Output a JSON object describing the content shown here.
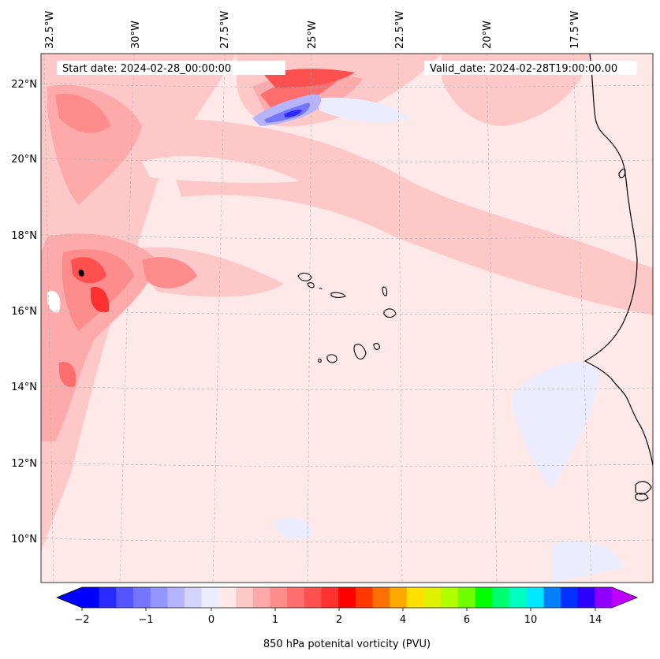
{
  "map": {
    "start_date": "Start date: 2024-02-28_00:00:00",
    "valid_date": "Valid_date: 2024-02-28T19:00:00.00",
    "lon_labels": [
      "32.5°W",
      "30°W",
      "27.5°W",
      "25°W",
      "22.5°W",
      "20°W",
      "17.5°W"
    ],
    "lat_labels": [
      "22°N",
      "20°N",
      "18°N",
      "16°N",
      "14°N",
      "12°N",
      "10°N"
    ],
    "background_color": "#ffe8e8",
    "coastline_color": "#000000"
  },
  "colorbar": {
    "label": "850 hPa potenital vorticity (PVU)",
    "tick_labels": [
      "−2",
      "−1",
      "0",
      "1",
      "2",
      "4",
      "6",
      "10",
      "14"
    ],
    "colors": [
      "#0000ff",
      "#2a2aff",
      "#5555ff",
      "#7575ff",
      "#9595ff",
      "#b4b4ff",
      "#d4d4ff",
      "#ececff",
      "#ffe8e8",
      "#ffc8c8",
      "#ffaaaa",
      "#ff8c8c",
      "#ff6e6e",
      "#ff5050",
      "#ff3030",
      "#ff0000",
      "#ff3800",
      "#ff7000",
      "#ffa800",
      "#ffe000",
      "#e0f000",
      "#b0ff00",
      "#70ff00",
      "#00ff00",
      "#00ff70",
      "#00ffc0",
      "#00e8ff",
      "#0080ff",
      "#0030ff",
      "#3000ff",
      "#9000ff"
    ],
    "extend_color_low": "#0000ff",
    "extend_color_high": "#c000ff"
  }
}
